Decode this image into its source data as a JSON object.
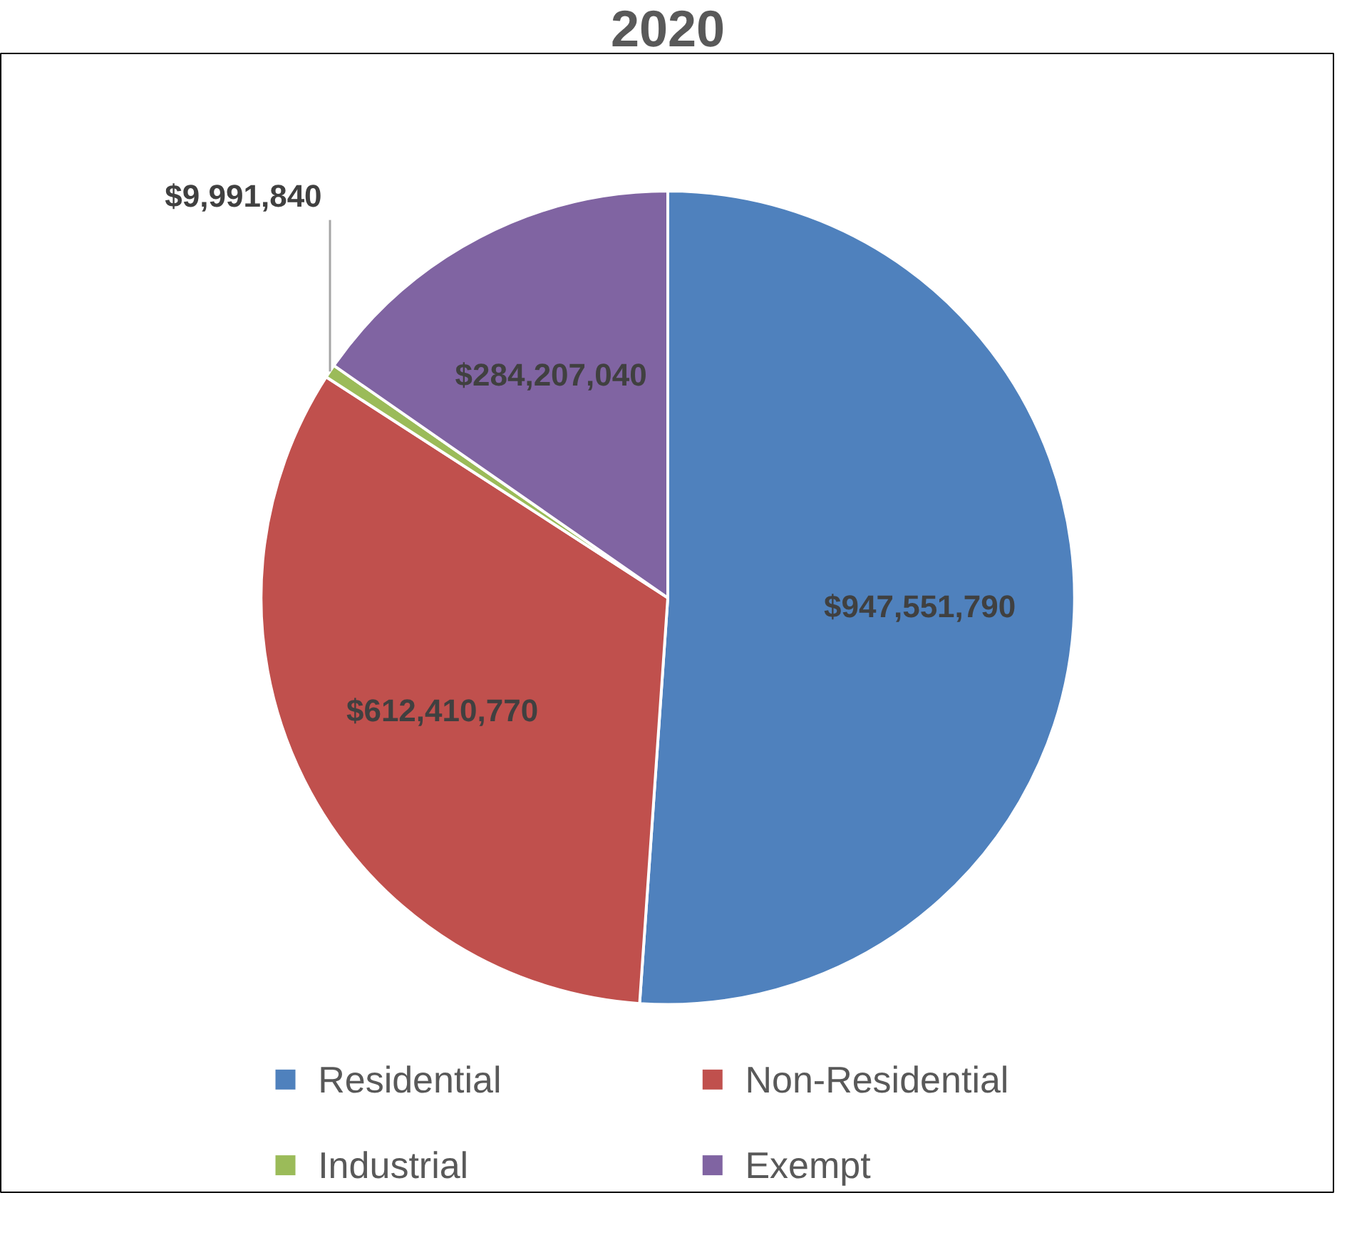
{
  "chart_data": {
    "type": "pie",
    "title": "2020",
    "categories": [
      "Residential",
      "Non-Residential",
      "Industrial",
      "Exempt"
    ],
    "values": [
      947551790,
      612410770,
      9991840,
      284207040
    ],
    "colors": [
      "#4f81bd",
      "#c0504d",
      "#9bbb59",
      "#8064a2"
    ],
    "value_labels": [
      "$947,551,790",
      "$612,410,770",
      "$9,991,840",
      "$284,207,040"
    ],
    "legend": "bottom"
  }
}
